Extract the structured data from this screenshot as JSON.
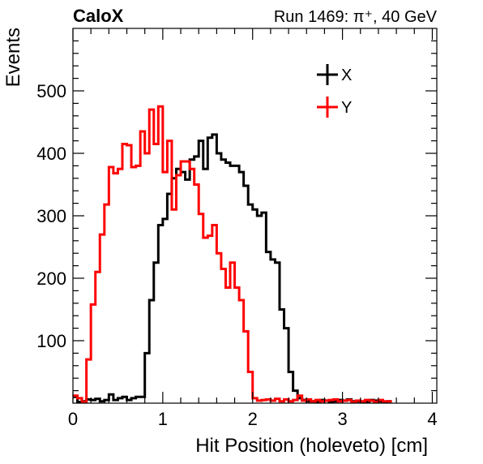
{
  "chart_data": {
    "type": "histogram",
    "title_left": "CaloX",
    "title_right": "Run 1469: π⁺, 40 GeV",
    "xlabel": "Hit Position (holeveto) [cm]",
    "ylabel": "Events",
    "xlim": [
      0,
      4.05
    ],
    "ylim": [
      0,
      600
    ],
    "xticks": [
      0,
      1,
      2,
      3,
      4
    ],
    "yticks": [
      100,
      200,
      300,
      400,
      500
    ],
    "x_tick_labels": [
      "0",
      "1",
      "2",
      "3",
      "4"
    ],
    "y_tick_labels": [
      "100",
      "200",
      "300",
      "400",
      "500"
    ],
    "bin_width": 0.05,
    "x_start": 0.0,
    "legend_position": "top-right",
    "series": [
      {
        "name": "X",
        "color": "#000000",
        "values": [
          10,
          2,
          3,
          6,
          5,
          7,
          3,
          5,
          14,
          5,
          8,
          10,
          5,
          8,
          10,
          10,
          80,
          165,
          225,
          285,
          295,
          335,
          360,
          375,
          370,
          358,
          390,
          395,
          420,
          375,
          425,
          430,
          400,
          390,
          385,
          380,
          380,
          370,
          348,
          318,
          310,
          300,
          305,
          242,
          230,
          225,
          150,
          120,
          50,
          20,
          8,
          5,
          3,
          3,
          2,
          5,
          4,
          2,
          3,
          5,
          4,
          6,
          3,
          3,
          2,
          2,
          5,
          4,
          3,
          2,
          3
        ]
      },
      {
        "name": "Y",
        "color": "#ff0000",
        "values": [
          12,
          8,
          2,
          70,
          158,
          210,
          270,
          318,
          378,
          368,
          375,
          415,
          413,
          378,
          380,
          435,
          400,
          470,
          415,
          475,
          370,
          420,
          310,
          365,
          387,
          387,
          375,
          350,
          303,
          265,
          268,
          285,
          240,
          215,
          185,
          225,
          185,
          165,
          115,
          50,
          8,
          4,
          5,
          6,
          4,
          7,
          3,
          6,
          3,
          5,
          12,
          4,
          6,
          3,
          5,
          3,
          4,
          5,
          6,
          3,
          4,
          5,
          2,
          4,
          3,
          5,
          4,
          2,
          5,
          3,
          3
        ]
      }
    ]
  }
}
